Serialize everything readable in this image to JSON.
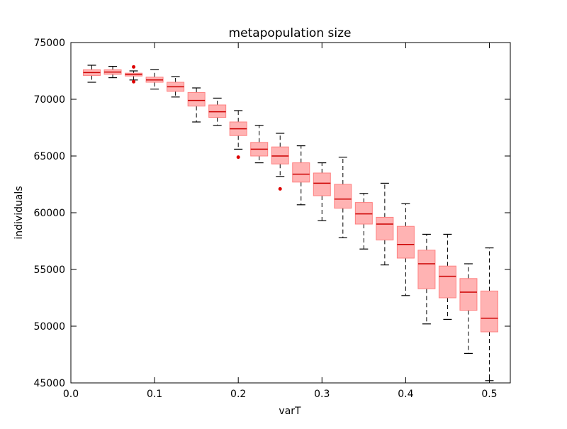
{
  "chart_data": {
    "type": "box",
    "title": "metapopulation size",
    "xlabel": "varT",
    "ylabel": "individuals",
    "xlim": [
      0.0,
      0.525
    ],
    "ylim": [
      45000,
      75000
    ],
    "x_ticks": [
      0.0,
      0.1,
      0.2,
      0.3,
      0.4,
      0.5
    ],
    "x_tick_labels": [
      "0.0",
      "0.1",
      "0.2",
      "0.3",
      "0.4",
      "0.5"
    ],
    "y_ticks": [
      45000,
      50000,
      55000,
      60000,
      65000,
      70000,
      75000
    ],
    "y_tick_labels": [
      "45000",
      "50000",
      "55000",
      "60000",
      "65000",
      "70000",
      "75000"
    ],
    "grid": false,
    "box_color": "#ffb3b3",
    "box_edge_color": "#ff8080",
    "median_color": "#cc0000",
    "whisker_color": "#000000",
    "outlier_color": "#dd0000",
    "boxes": [
      {
        "x": 0.025,
        "whislo": 71500,
        "q1": 72100,
        "med": 72350,
        "q3": 72600,
        "whishi": 73000,
        "fliers": []
      },
      {
        "x": 0.05,
        "whislo": 71900,
        "q1": 72200,
        "med": 72400,
        "q3": 72600,
        "whishi": 72900,
        "fliers": []
      },
      {
        "x": 0.075,
        "whislo": 71700,
        "q1": 72050,
        "med": 72200,
        "q3": 72300,
        "whishi": 72500,
        "fliers": [
          72850,
          71550
        ]
      },
      {
        "x": 0.1,
        "whislo": 70900,
        "q1": 71500,
        "med": 71700,
        "q3": 71950,
        "whishi": 72600,
        "fliers": []
      },
      {
        "x": 0.125,
        "whislo": 70200,
        "q1": 70700,
        "med": 71100,
        "q3": 71500,
        "whishi": 72000,
        "fliers": []
      },
      {
        "x": 0.15,
        "whislo": 68000,
        "q1": 69400,
        "med": 69900,
        "q3": 70600,
        "whishi": 71000,
        "fliers": []
      },
      {
        "x": 0.175,
        "whislo": 67700,
        "q1": 68400,
        "med": 68900,
        "q3": 69500,
        "whishi": 70100,
        "fliers": []
      },
      {
        "x": 0.2,
        "whislo": 65600,
        "q1": 66800,
        "med": 67400,
        "q3": 68000,
        "whishi": 69000,
        "fliers": [
          64900
        ]
      },
      {
        "x": 0.225,
        "whislo": 64400,
        "q1": 65000,
        "med": 65600,
        "q3": 66200,
        "whishi": 67700,
        "fliers": []
      },
      {
        "x": 0.25,
        "whislo": 63200,
        "q1": 64300,
        "med": 65000,
        "q3": 65800,
        "whishi": 67000,
        "fliers": [
          62100
        ]
      },
      {
        "x": 0.275,
        "whislo": 60700,
        "q1": 62700,
        "med": 63400,
        "q3": 64400,
        "whishi": 65900,
        "fliers": []
      },
      {
        "x": 0.3,
        "whislo": 59300,
        "q1": 61500,
        "med": 62600,
        "q3": 63500,
        "whishi": 64400,
        "fliers": []
      },
      {
        "x": 0.325,
        "whislo": 57800,
        "q1": 60400,
        "med": 61200,
        "q3": 62500,
        "whishi": 64900,
        "fliers": []
      },
      {
        "x": 0.35,
        "whislo": 56800,
        "q1": 59000,
        "med": 59900,
        "q3": 60900,
        "whishi": 61700,
        "fliers": []
      },
      {
        "x": 0.375,
        "whislo": 55400,
        "q1": 57600,
        "med": 59000,
        "q3": 59600,
        "whishi": 62600,
        "fliers": []
      },
      {
        "x": 0.4,
        "whislo": 52700,
        "q1": 56000,
        "med": 57200,
        "q3": 58800,
        "whishi": 60800,
        "fliers": []
      },
      {
        "x": 0.425,
        "whislo": 50200,
        "q1": 53300,
        "med": 55500,
        "q3": 56700,
        "whishi": 58100,
        "fliers": []
      },
      {
        "x": 0.45,
        "whislo": 50600,
        "q1": 52500,
        "med": 54400,
        "q3": 55300,
        "whishi": 58100,
        "fliers": []
      },
      {
        "x": 0.475,
        "whislo": 47600,
        "q1": 51400,
        "med": 53000,
        "q3": 54200,
        "whishi": 55500,
        "fliers": []
      },
      {
        "x": 0.5,
        "whislo": 45200,
        "q1": 49500,
        "med": 50700,
        "q3": 53100,
        "whishi": 56900,
        "fliers": []
      }
    ]
  }
}
